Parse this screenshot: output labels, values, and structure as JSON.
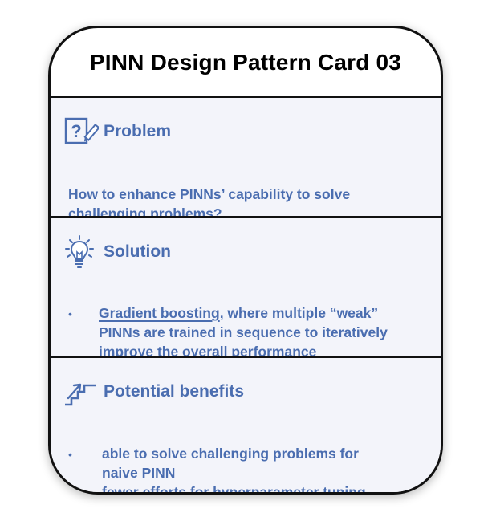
{
  "card": {
    "title": "PINN Design Pattern Card 03"
  },
  "problem": {
    "heading": "Problem",
    "icon": "question-edit-icon",
    "text_line1": "How to enhance PINNs’ capability to solve",
    "text_line2": "challenging problems?"
  },
  "solution": {
    "heading": "Solution",
    "icon": "lightbulb-icon",
    "bullet_symbol": "•",
    "highlight": "Gradient boosting",
    "line1_rest": ", where multiple “weak”",
    "line2": "PINNs are trained in sequence to iteratively",
    "line3": "improve the overall performance"
  },
  "benefits": {
    "heading": "Potential benefits",
    "icon": "stairs-arrow-icon",
    "bullet_symbol": "•",
    "items": [
      {
        "line1": "able to solve challenging problems for",
        "line2": "naive PINN"
      },
      {
        "line1": "fewer efforts for hyperparameter tuning"
      }
    ]
  },
  "colors": {
    "accent": "#4a6db0",
    "border": "#111111",
    "section_bg": "#f3f4fa"
  }
}
